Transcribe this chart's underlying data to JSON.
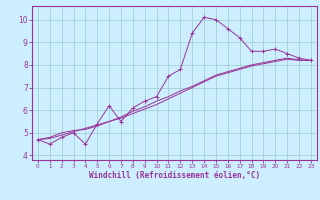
{
  "xlabel": "Windchill (Refroidissement éolien,°C)",
  "bg_color": "#cceeff",
  "line_color": "#993399",
  "grid_color": "#99cccc",
  "x_data": [
    0,
    1,
    2,
    3,
    4,
    5,
    6,
    7,
    8,
    9,
    10,
    11,
    12,
    13,
    14,
    15,
    16,
    17,
    18,
    19,
    20,
    21,
    22,
    23
  ],
  "y_line1": [
    4.7,
    4.5,
    4.8,
    5.0,
    4.5,
    5.4,
    6.2,
    5.5,
    6.1,
    6.4,
    6.6,
    7.5,
    7.8,
    9.4,
    10.1,
    10.0,
    9.6,
    9.2,
    8.6,
    8.6,
    8.7,
    8.5,
    8.3,
    8.2
  ],
  "y_line2": [
    4.7,
    4.75,
    4.9,
    5.05,
    5.2,
    5.35,
    5.5,
    5.65,
    5.85,
    6.05,
    6.25,
    6.5,
    6.75,
    7.0,
    7.25,
    7.5,
    7.65,
    7.8,
    7.95,
    8.05,
    8.15,
    8.25,
    8.2,
    8.2
  ],
  "y_line3": [
    4.7,
    4.8,
    5.0,
    5.1,
    5.15,
    5.3,
    5.5,
    5.7,
    5.95,
    6.15,
    6.4,
    6.6,
    6.85,
    7.05,
    7.3,
    7.55,
    7.7,
    7.85,
    8.0,
    8.1,
    8.2,
    8.3,
    8.22,
    8.2
  ],
  "xlim": [
    -0.5,
    23.5
  ],
  "ylim": [
    3.8,
    10.6
  ],
  "yticks": [
    4,
    5,
    6,
    7,
    8,
    9,
    10
  ],
  "xticks": [
    0,
    1,
    2,
    3,
    4,
    5,
    6,
    7,
    8,
    9,
    10,
    11,
    12,
    13,
    14,
    15,
    16,
    17,
    18,
    19,
    20,
    21,
    22,
    23
  ]
}
